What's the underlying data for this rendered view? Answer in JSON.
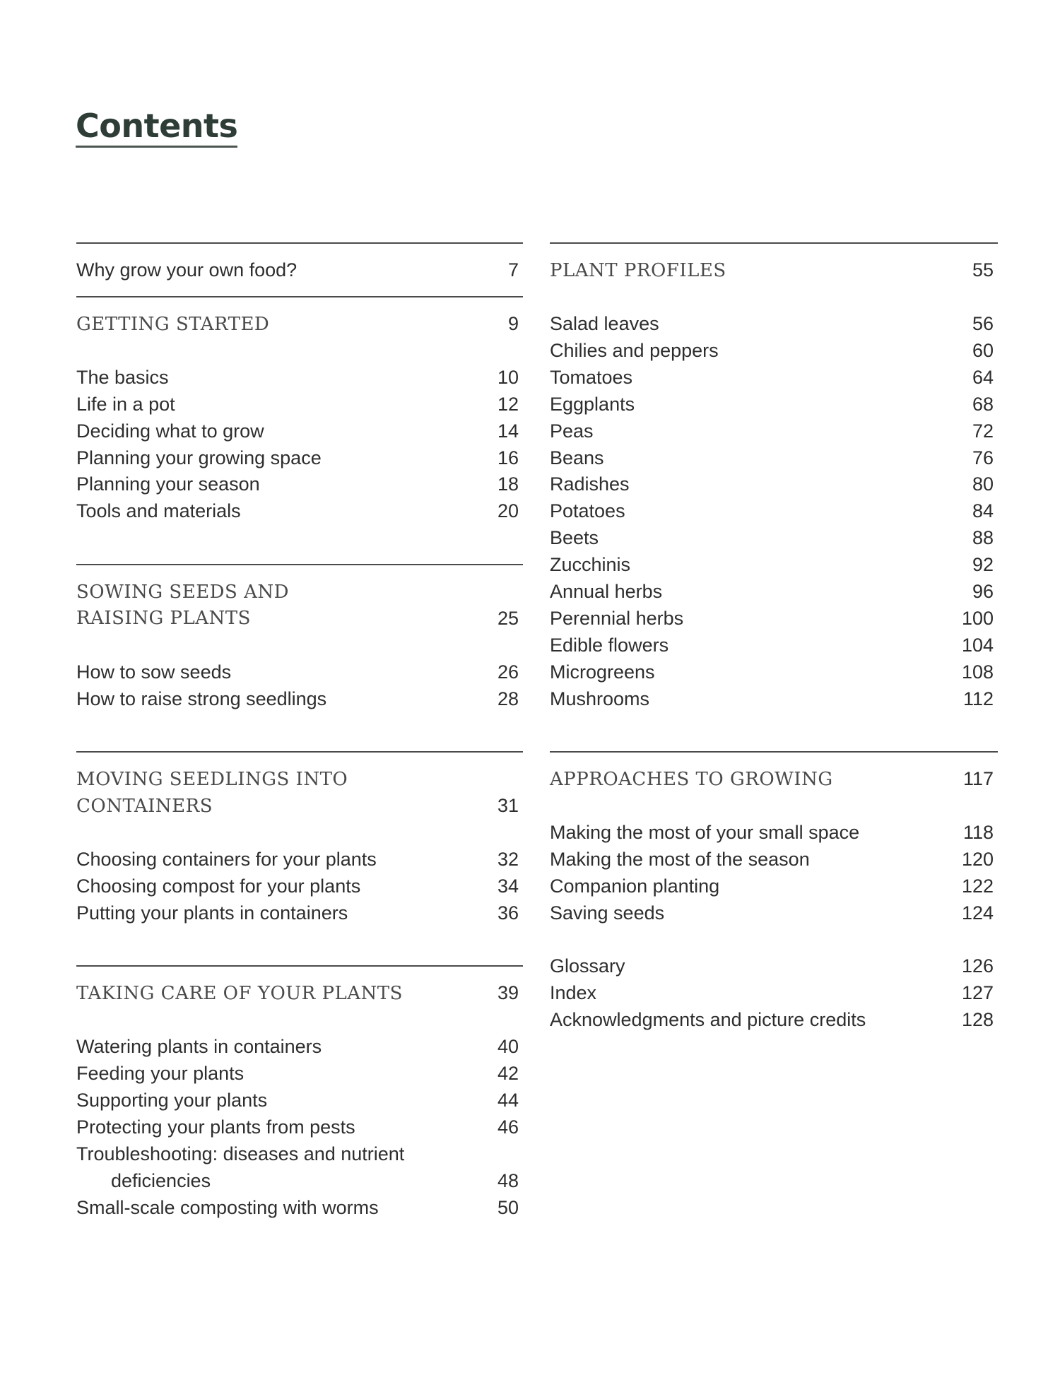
{
  "title": "Contents",
  "left": {
    "intro": {
      "title": "Why grow your own food?",
      "page": "7"
    },
    "getting_started": {
      "heading": "GETTING STARTED",
      "page": "9",
      "items": [
        {
          "title": "The basics",
          "page": "10"
        },
        {
          "title": "Life in a pot",
          "page": "12"
        },
        {
          "title": "Deciding what to grow",
          "page": "14"
        },
        {
          "title": "Planning your growing space",
          "page": "16"
        },
        {
          "title": "Planning your season",
          "page": "18"
        },
        {
          "title": "Tools and materials",
          "page": "20"
        }
      ]
    },
    "sowing": {
      "heading_line1": "SOWING SEEDS AND",
      "heading_line2": "RAISING PLANTS",
      "page": "25",
      "items": [
        {
          "title": "How to sow seeds",
          "page": "26"
        },
        {
          "title": "How to raise strong seedlings",
          "page": "28"
        }
      ]
    },
    "moving": {
      "heading_line1": "MOVING SEEDLINGS INTO",
      "heading_line2": "CONTAINERS",
      "page": "31",
      "items": [
        {
          "title": "Choosing containers for your plants",
          "page": "32"
        },
        {
          "title": "Choosing compost for your plants",
          "page": "34"
        },
        {
          "title": "Putting your plants in containers",
          "page": "36"
        }
      ]
    },
    "care": {
      "heading": "TAKING CARE OF YOUR PLANTS",
      "page": "39",
      "items": [
        {
          "title": "Watering plants in containers",
          "page": "40"
        },
        {
          "title": "Feeding your plants",
          "page": "42"
        },
        {
          "title": "Supporting your plants",
          "page": "44"
        },
        {
          "title": "Protecting your plants from pests",
          "page": "46"
        },
        {
          "title_line1": "Troubleshooting: diseases and nutrient",
          "title_line2": "deficiencies",
          "page": "48"
        },
        {
          "title": "Small-scale composting with worms",
          "page": "50"
        }
      ]
    }
  },
  "right": {
    "profiles": {
      "heading": "PLANT PROFILES",
      "page": "55",
      "items": [
        {
          "title": "Salad leaves",
          "page": "56"
        },
        {
          "title": "Chilies and peppers",
          "page": "60"
        },
        {
          "title": "Tomatoes",
          "page": "64"
        },
        {
          "title": "Eggplants",
          "page": "68"
        },
        {
          "title": "Peas",
          "page": "72"
        },
        {
          "title": "Beans",
          "page": "76"
        },
        {
          "title": "Radishes",
          "page": "80"
        },
        {
          "title": "Potatoes",
          "page": "84"
        },
        {
          "title": "Beets",
          "page": "88"
        },
        {
          "title": "Zucchinis",
          "page": "92"
        },
        {
          "title": "Annual herbs",
          "page": "96"
        },
        {
          "title": "Perennial herbs",
          "page": "100"
        },
        {
          "title": "Edible flowers",
          "page": "104"
        },
        {
          "title": "Microgreens",
          "page": "108"
        },
        {
          "title": "Mushrooms",
          "page": "112"
        }
      ]
    },
    "approaches": {
      "heading": "APPROACHES TO GROWING",
      "page": "117",
      "items": [
        {
          "title": "Making the most of your small space",
          "page": "118"
        },
        {
          "title": "Making the most of the season",
          "page": "120"
        },
        {
          "title": "Companion planting",
          "page": "122"
        },
        {
          "title": "Saving seeds",
          "page": "124"
        }
      ]
    },
    "back_matter": [
      {
        "title": "Glossary",
        "page": "126"
      },
      {
        "title": "Index",
        "page": "127"
      },
      {
        "title": "Acknowledgments and picture credits",
        "page": "128"
      }
    ]
  }
}
